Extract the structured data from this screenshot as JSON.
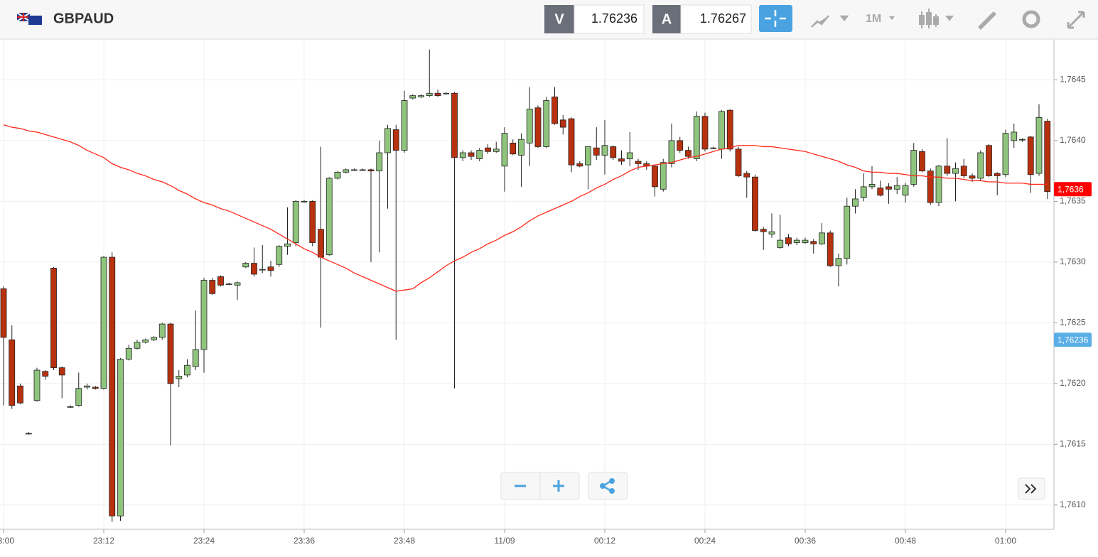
{
  "header": {
    "symbol": "GBPAUD",
    "sell_label": "V",
    "sell_price": 1.76236,
    "buy_label": "A",
    "buy_price": 1.76267,
    "timeframe": "1M"
  },
  "chart_data": {
    "type": "candlestick",
    "categories": [
      "23:00",
      null,
      null,
      null,
      null,
      null,
      null,
      null,
      null,
      null,
      null,
      null,
      "23:12",
      null,
      null,
      null,
      null,
      null,
      null,
      null,
      null,
      null,
      null,
      null,
      "23:24",
      null,
      null,
      null,
      null,
      null,
      null,
      null,
      null,
      null,
      null,
      null,
      "23:36",
      null,
      null,
      null,
      null,
      null,
      null,
      null,
      null,
      null,
      null,
      null,
      "23:48",
      null,
      null,
      null,
      null,
      null,
      null,
      null,
      null,
      null,
      null,
      null,
      "11/09",
      null,
      null,
      null,
      null,
      null,
      null,
      null,
      null,
      null,
      null,
      null,
      "00:12",
      null,
      null,
      null,
      null,
      null,
      null,
      null,
      null,
      null,
      null,
      null,
      "00:24",
      null,
      null,
      null,
      null,
      null,
      null,
      null,
      null,
      null,
      null,
      null,
      "00:36",
      null,
      null,
      null,
      null,
      null,
      null,
      null,
      null,
      null,
      null,
      null,
      "00:48",
      null,
      null,
      null,
      null,
      null,
      null,
      null,
      null,
      null,
      null,
      null,
      "01:00",
      null,
      null,
      null,
      null,
      null
    ],
    "open": [
      1.76278,
      1.76236,
      1.76198,
      1.76159,
      1.76186,
      1.7621,
      1.76295,
      1.76213,
      1.76181,
      1.76182,
      1.76197,
      1.76197,
      1.76196,
      1.76304,
      1.76091,
      1.7622,
      1.76229,
      1.76234,
      1.76236,
      1.76238,
      1.76249,
      1.76204,
      1.76207,
      1.76214,
      1.76228,
      1.76285,
      1.76288,
      1.76282,
      1.76281,
      1.76296,
      1.76299,
      1.76294,
      1.76296,
      1.76298,
      1.76313,
      1.76316,
      1.7635,
      1.7635,
      1.76327,
      1.76306,
      1.76369,
      1.76374,
      1.76376,
      1.76376,
      1.76376,
      1.76375,
      1.7639,
      1.76409,
      1.76392,
      1.76435,
      1.76436,
      1.76437,
      1.76439,
      1.76439,
      1.76439,
      1.76386,
      1.7639,
      1.76385,
      1.76394,
      1.76391,
      1.76379,
      1.76398,
      1.76388,
      1.76398,
      1.76427,
      1.76395,
      1.76436,
      1.76417,
      1.76418,
      1.76381,
      1.7638,
      1.76394,
      1.76388,
      1.76395,
      1.76385,
      1.76385,
      1.76383,
      1.76381,
      1.76379,
      1.7636,
      1.76381,
      1.764,
      1.76392,
      1.76385,
      1.7642,
      1.76394,
      1.76393,
      1.76425,
      1.76393,
      1.76373,
      1.7637,
      1.76327,
      1.76323,
      1.76312,
      1.7632,
      1.76316,
      1.76316,
      1.76317,
      1.76315,
      1.76324,
      1.76297,
      1.76303,
      1.76346,
      1.76353,
      1.76362,
      1.76361,
      1.76362,
      1.7636,
      1.76355,
      1.76364,
      1.76391,
      1.76375,
      1.76349,
      1.76379,
      1.76373,
      1.76379,
      1.76371,
      1.76369,
      1.76396,
      1.76373,
      1.76372,
      1.764,
      1.76401,
      1.76403,
      1.76373,
      1.76416
    ],
    "high": [
      1.7628,
      1.76248,
      1.762,
      1.7616,
      1.76213,
      1.76211,
      1.76296,
      1.76214,
      1.76182,
      1.76209,
      1.762,
      1.76198,
      1.76305,
      1.76308,
      1.76221,
      1.76232,
      1.76236,
      1.76237,
      1.76239,
      1.7625,
      1.7625,
      1.76211,
      1.7622,
      1.7626,
      1.76287,
      1.76287,
      1.76289,
      1.76283,
      1.76284,
      1.763,
      1.76312,
      1.76314,
      1.76301,
      1.76314,
      1.76345,
      1.76351,
      1.76351,
      1.76351,
      1.76395,
      1.7637,
      1.76375,
      1.76377,
      1.76377,
      1.76377,
      1.76377,
      1.764,
      1.76413,
      1.76413,
      1.76441,
      1.76438,
      1.76438,
      1.76475,
      1.76442,
      1.7644,
      1.7644,
      1.76392,
      1.76392,
      1.76394,
      1.76397,
      1.76399,
      1.76411,
      1.76401,
      1.76406,
      1.76444,
      1.76429,
      1.76436,
      1.76444,
      1.76421,
      1.76419,
      1.76383,
      1.76395,
      1.76411,
      1.76417,
      1.76396,
      1.76392,
      1.76407,
      1.76385,
      1.76383,
      1.7638,
      1.76385,
      1.76414,
      1.76403,
      1.76395,
      1.76424,
      1.76423,
      1.76395,
      1.76425,
      1.76426,
      1.76395,
      1.76375,
      1.76372,
      1.76329,
      1.7634,
      1.76339,
      1.76323,
      1.7632,
      1.7632,
      1.76319,
      1.76332,
      1.76326,
      1.76307,
      1.76353,
      1.7636,
      1.76373,
      1.76379,
      1.76367,
      1.76365,
      1.7637,
      1.76365,
      1.76398,
      1.76393,
      1.76377,
      1.7638,
      1.76402,
      1.76382,
      1.76385,
      1.76373,
      1.76392,
      1.76397,
      1.76374,
      1.76409,
      1.76414,
      1.76402,
      1.76404,
      1.7643,
      1.76418
    ],
    "low": [
      1.76182,
      1.76179,
      1.76183,
      1.76158,
      1.76185,
      1.76203,
      1.76211,
      1.76188,
      1.7618,
      1.76181,
      1.76195,
      1.76195,
      1.76195,
      1.76086,
      1.76087,
      1.76219,
      1.76228,
      1.76233,
      1.76235,
      1.76236,
      1.76149,
      1.76197,
      1.76205,
      1.76211,
      1.76209,
      1.76273,
      1.7628,
      1.76281,
      1.76269,
      1.76295,
      1.76288,
      1.76291,
      1.76288,
      1.76296,
      1.76306,
      1.76313,
      1.76349,
      1.76313,
      1.76246,
      1.76305,
      1.76368,
      1.76373,
      1.76375,
      1.76375,
      1.763,
      1.76308,
      1.76344,
      1.76236,
      1.7639,
      1.76434,
      1.76435,
      1.76436,
      1.76436,
      1.76438,
      1.76196,
      1.76383,
      1.76384,
      1.76383,
      1.76389,
      1.7639,
      1.76358,
      1.76388,
      1.76362,
      1.76379,
      1.76394,
      1.76394,
      1.76413,
      1.76405,
      1.76374,
      1.76378,
      1.7636,
      1.76384,
      1.76372,
      1.76384,
      1.7638,
      1.76379,
      1.76376,
      1.76376,
      1.76354,
      1.76358,
      1.76378,
      1.7639,
      1.76385,
      1.76383,
      1.76391,
      1.76393,
      1.76385,
      1.76391,
      1.7637,
      1.76353,
      1.76325,
      1.7631,
      1.7632,
      1.76311,
      1.76313,
      1.76314,
      1.76315,
      1.76307,
      1.76314,
      1.76296,
      1.7628,
      1.76298,
      1.7634,
      1.7635,
      1.7636,
      1.76354,
      1.76348,
      1.76356,
      1.76349,
      1.76362,
      1.76374,
      1.76347,
      1.76346,
      1.76371,
      1.7635,
      1.76369,
      1.76366,
      1.76367,
      1.7637,
      1.76355,
      1.7637,
      1.76394,
      1.76399,
      1.76357,
      1.76371,
      1.76352
    ],
    "close": [
      1.76238,
      1.76182,
      1.76184,
      1.76159,
      1.76211,
      1.76206,
      1.76213,
      1.76207,
      1.76181,
      1.76196,
      1.76198,
      1.76196,
      1.76304,
      1.76091,
      1.7622,
      1.76229,
      1.76234,
      1.76236,
      1.76238,
      1.76249,
      1.762,
      1.76206,
      1.76215,
      1.76228,
      1.76285,
      1.76274,
      1.76281,
      1.76282,
      1.76283,
      1.76299,
      1.7629,
      1.76294,
      1.76293,
      1.76313,
      1.76315,
      1.7635,
      1.7635,
      1.76316,
      1.76304,
      1.76369,
      1.76374,
      1.76376,
      1.76376,
      1.76376,
      1.76375,
      1.7639,
      1.7641,
      1.76392,
      1.76433,
      1.76437,
      1.76437,
      1.76439,
      1.76437,
      1.76439,
      1.76386,
      1.7639,
      1.76387,
      1.76392,
      1.76391,
      1.76393,
      1.76406,
      1.76389,
      1.76401,
      1.76426,
      1.76395,
      1.76433,
      1.76414,
      1.76411,
      1.7638,
      1.76379,
      1.76395,
      1.76388,
      1.76396,
      1.76386,
      1.76383,
      1.7639,
      1.76381,
      1.76379,
      1.76362,
      1.76382,
      1.764,
      1.76392,
      1.76387,
      1.7642,
      1.76393,
      1.76394,
      1.76424,
      1.76393,
      1.76371,
      1.7637,
      1.76326,
      1.76325,
      1.76325,
      1.76318,
      1.76315,
      1.76318,
      1.76318,
      1.76315,
      1.76324,
      1.76297,
      1.76303,
      1.76346,
      1.76352,
      1.76362,
      1.76364,
      1.76355,
      1.7636,
      1.76363,
      1.76363,
      1.76392,
      1.76375,
      1.76349,
      1.76379,
      1.76373,
      1.76377,
      1.76371,
      1.76369,
      1.7639,
      1.76371,
      1.76371,
      1.76406,
      1.76407,
      1.76401,
      1.76372,
      1.76419,
      1.76358
    ],
    "up_color": "#8fc47d",
    "down_color": "#b8310e",
    "series": [
      {
        "color": "#ff2a1a",
        "values": [
          1.76413,
          1.76411,
          1.7641,
          1.76408,
          1.76407,
          1.76405,
          1.76403,
          1.76401,
          1.76399,
          1.76396,
          1.76392,
          1.76389,
          1.76386,
          1.76381,
          1.76378,
          1.76376,
          1.76373,
          1.76371,
          1.76368,
          1.76366,
          1.76363,
          1.76359,
          1.76356,
          1.76352,
          1.76349,
          1.76347,
          1.76344,
          1.76342,
          1.76339,
          1.76336,
          1.76333,
          1.7633,
          1.76327,
          1.76323,
          1.76319,
          1.76315,
          1.76311,
          1.76308,
          1.76304,
          1.76301,
          1.76298,
          1.76295,
          1.76291,
          1.76288,
          1.76285,
          1.76282,
          1.76279,
          1.76276,
          1.76277,
          1.76278,
          1.76283,
          1.76287,
          1.76292,
          1.76297,
          1.76301,
          1.76304,
          1.76308,
          1.76311,
          1.76315,
          1.76318,
          1.76322,
          1.76325,
          1.76329,
          1.76334,
          1.76338,
          1.76341,
          1.76344,
          1.76347,
          1.7635,
          1.76354,
          1.76357,
          1.76361,
          1.76364,
          1.76368,
          1.76371,
          1.76375,
          1.76378,
          1.76379,
          1.7638,
          1.76381,
          1.76382,
          1.76384,
          1.76386,
          1.76387,
          1.76389,
          1.76391,
          1.76393,
          1.76394,
          1.76396,
          1.76396,
          1.76396,
          1.76395,
          1.76395,
          1.76394,
          1.76393,
          1.76392,
          1.76391,
          1.76389,
          1.76387,
          1.76385,
          1.76383,
          1.7638,
          1.76378,
          1.76375,
          1.76374,
          1.76374,
          1.76373,
          1.76373,
          1.76372,
          1.76371,
          1.76371,
          1.7637,
          1.7637,
          1.76369,
          1.76369,
          1.76368,
          1.76367,
          1.76367,
          1.76366,
          1.76366,
          1.76365,
          1.76365,
          1.76365,
          1.76364,
          1.76364,
          1.76364
        ]
      }
    ],
    "ylim": [
      1.7608,
      1.76483
    ],
    "yticks": [
      {
        "value": 1.761,
        "label": "1,7610"
      },
      {
        "value": 1.7615,
        "label": "1,7615"
      },
      {
        "value": 1.762,
        "label": "1,7620"
      },
      {
        "value": 1.7625,
        "label": "1,7625"
      },
      {
        "value": 1.763,
        "label": "1,7630"
      },
      {
        "value": 1.7635,
        "label": "1,7635"
      },
      {
        "value": 1.764,
        "label": "1,7640"
      },
      {
        "value": 1.7645,
        "label": "1,7645"
      }
    ],
    "grid": true,
    "price_tags": [
      {
        "value": 1.7636,
        "label": "1,7636",
        "color": "#ff0000"
      },
      {
        "value": 1.76236,
        "label": "1,76236",
        "color": "#5aaee6"
      }
    ]
  }
}
